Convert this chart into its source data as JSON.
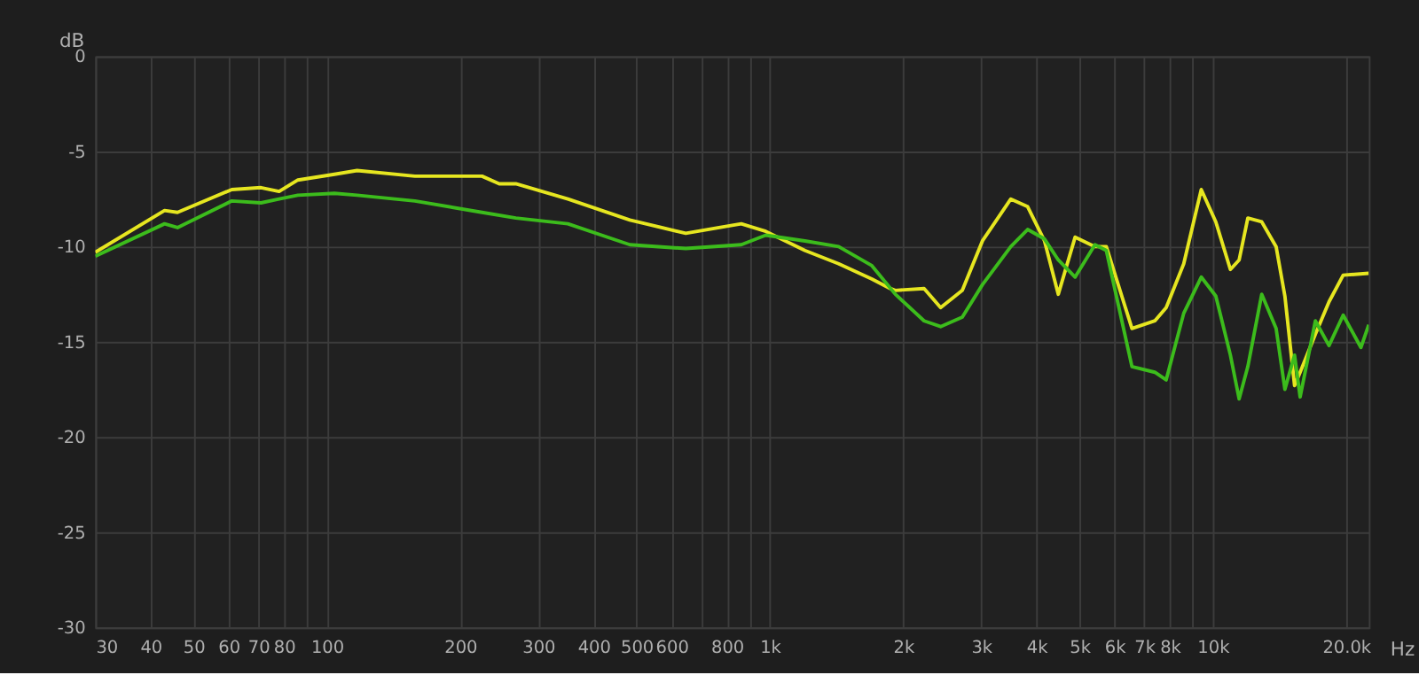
{
  "chart_data": {
    "type": "line",
    "ylabel": "dB",
    "xlabel": "Hz",
    "log": "x",
    "grid": true,
    "legend": false,
    "line_style": "solid",
    "marker": "none",
    "xlim": [
      30,
      22500
    ],
    "ylim": [
      -30,
      0
    ],
    "xticks": [
      30,
      40,
      50,
      60,
      70,
      80,
      {
        "value": 90,
        "label": null
      },
      100,
      200,
      300,
      400,
      500,
      600,
      {
        "value": 700,
        "label": null
      },
      800,
      {
        "value": 900,
        "label": null
      },
      {
        "value": 1000,
        "label": "1k"
      },
      {
        "value": 2000,
        "label": "2k"
      },
      {
        "value": 3000,
        "label": "3k"
      },
      {
        "value": 4000,
        "label": "4k"
      },
      {
        "value": 5000,
        "label": "5k"
      },
      {
        "value": 6000,
        "label": "6k"
      },
      {
        "value": 7000,
        "label": "7k"
      },
      {
        "value": 8000,
        "label": "8k"
      },
      {
        "value": 9000,
        "label": null
      },
      {
        "value": 10000,
        "label": "10k"
      },
      {
        "value": 20000,
        "label": "20.0k"
      }
    ],
    "yticks": [
      0,
      -5,
      -10,
      -15,
      -20,
      -25,
      -30
    ],
    "series": [
      {
        "color": "#e6e620",
        "x": [
          30,
          43,
          46,
          61,
          71,
          78,
          86,
          104,
          117,
          158,
          224,
          245,
          267,
          350,
          483,
          646,
          862,
          979,
          1200,
          1430,
          1700,
          1870,
          1920,
          2230,
          2430,
          2720,
          3020,
          3500,
          3820,
          4170,
          4480,
          4890,
          5420,
          5750,
          6570,
          7400,
          7850,
          8600,
          9420,
          10160,
          10960,
          11470,
          12000,
          12900,
          13900,
          14550,
          15300,
          15750,
          17050,
          18300,
          19700,
          22500
        ],
        "values": [
          -10.3,
          -8.1,
          -8.2,
          -7.0,
          -6.9,
          -7.1,
          -6.5,
          -6.2,
          -6.0,
          -6.3,
          -6.3,
          -6.7,
          -6.7,
          -7.5,
          -8.6,
          -9.3,
          -8.8,
          -9.2,
          -10.2,
          -10.9,
          -11.7,
          -12.2,
          -12.3,
          -12.2,
          -13.2,
          -12.3,
          -9.7,
          -7.5,
          -7.9,
          -9.7,
          -12.5,
          -9.5,
          -10.0,
          -10.0,
          -14.3,
          -13.9,
          -13.2,
          -10.9,
          -7.0,
          -8.7,
          -11.2,
          -10.7,
          -8.5,
          -8.7,
          -10.0,
          -12.6,
          -17.3,
          -16.6,
          -14.6,
          -12.9,
          -11.5,
          -11.4
        ]
      },
      {
        "color": "#3cbc1c",
        "x": [
          30,
          43,
          46,
          61,
          71,
          78,
          86,
          104,
          117,
          158,
          224,
          267,
          350,
          483,
          646,
          862,
          979,
          1200,
          1430,
          1700,
          1920,
          2230,
          2430,
          2720,
          3020,
          3500,
          3820,
          4170,
          4480,
          4890,
          5420,
          5750,
          6570,
          7400,
          7850,
          8600,
          9420,
          10160,
          10960,
          11470,
          12000,
          12900,
          13900,
          14550,
          15300,
          15750,
          17050,
          18300,
          19700,
          21600,
          22500
        ],
        "values": [
          -10.5,
          -8.8,
          -9.0,
          -7.6,
          -7.7,
          -7.5,
          -7.3,
          -7.2,
          -7.3,
          -7.6,
          -8.2,
          -8.5,
          -8.8,
          -9.9,
          -10.1,
          -9.9,
          -9.4,
          -9.7,
          -10.0,
          -11.0,
          -12.5,
          -13.9,
          -14.2,
          -13.7,
          -12.0,
          -10.0,
          -9.1,
          -9.6,
          -10.7,
          -11.6,
          -9.9,
          -10.2,
          -16.3,
          -16.6,
          -17.0,
          -13.5,
          -11.6,
          -12.6,
          -15.7,
          -18.0,
          -16.3,
          -12.5,
          -14.3,
          -17.5,
          -15.7,
          -17.9,
          -13.9,
          -15.2,
          -13.6,
          -15.3,
          -14.1
        ]
      }
    ]
  }
}
